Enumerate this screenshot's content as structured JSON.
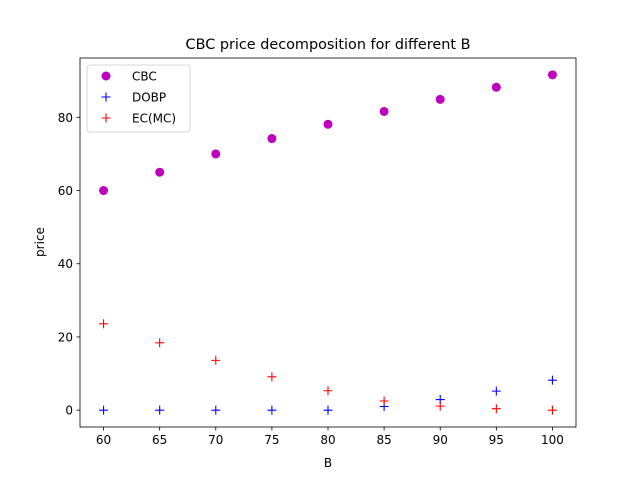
{
  "chart_data": {
    "type": "scatter",
    "title": "CBC price decomposition for different B",
    "xlabel": "B",
    "ylabel": "price",
    "x": [
      60,
      65,
      70,
      75,
      80,
      85,
      90,
      95,
      100
    ],
    "xticks": [
      "60",
      "65",
      "70",
      "75",
      "80",
      "85",
      "90",
      "95",
      "100"
    ],
    "yticks": [
      "0",
      "20",
      "40",
      "60",
      "80"
    ],
    "xlim": [
      57.9,
      102.1
    ],
    "ylim": [
      -4.6,
      96.2
    ],
    "grid": false,
    "legend_position": "upper-left",
    "series": [
      {
        "name": "CBC",
        "marker": "circle",
        "color": "#bf00bf",
        "values": [
          60.0,
          65.0,
          70.0,
          74.2,
          78.1,
          81.6,
          84.9,
          88.2,
          91.6
        ]
      },
      {
        "name": "DOBP",
        "marker": "plus",
        "color": "#0000ff",
        "values": [
          0.0,
          0.0,
          0.0,
          0.0,
          0.0,
          1.0,
          2.9,
          5.2,
          8.2
        ]
      },
      {
        "name": "EC(MC)",
        "marker": "plus",
        "color": "#ff0000",
        "values": [
          23.6,
          18.4,
          13.6,
          9.1,
          5.3,
          2.5,
          1.1,
          0.4,
          0.0
        ]
      }
    ]
  }
}
